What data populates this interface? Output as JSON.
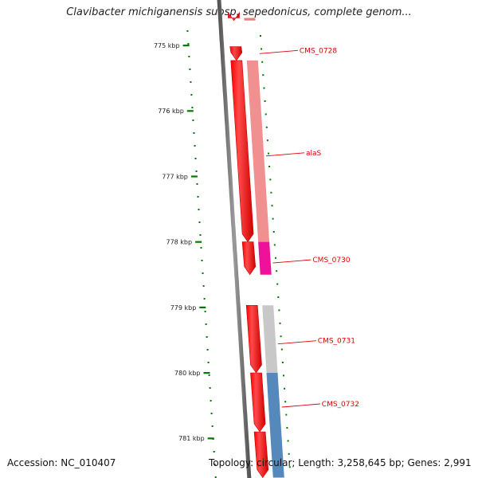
{
  "title": "Clavibacter michiganensis subsp. sepedonicus, complete genom...",
  "footer": {
    "accession": "Accession: NC_010407",
    "stats": "Topology: circular; Length: 3,258,645 bp; Genes: 2,991"
  },
  "ruler": [
    {
      "label": "775 kbp",
      "kbp": 775
    },
    {
      "label": "776 kbp",
      "kbp": 776
    },
    {
      "label": "777 kbp",
      "kbp": 777
    },
    {
      "label": "778 kbp",
      "kbp": 778
    },
    {
      "label": "779 kbp",
      "kbp": 779
    },
    {
      "label": "780 kbp",
      "kbp": 780
    },
    {
      "label": "781 kbp",
      "kbp": 781
    }
  ],
  "genes": [
    {
      "label": "",
      "start_kbp": 774.58,
      "end_kbp": 774.62,
      "strand": "-",
      "cds_color": "#e88080"
    },
    {
      "label": "CMS_0728",
      "start_kbp": 775.02,
      "end_kbp": 775.23,
      "strand": "-",
      "cds_color": ""
    },
    {
      "label": "alaS",
      "start_kbp": 775.23,
      "end_kbp": 778.0,
      "strand": "-",
      "cds_color": "#f09090"
    },
    {
      "label": "CMS_0730",
      "start_kbp": 778.0,
      "end_kbp": 778.5,
      "strand": "-",
      "cds_color": "#ee1199"
    },
    {
      "label": "CMS_0731",
      "start_kbp": 778.97,
      "end_kbp": 780.0,
      "strand": "-",
      "cds_color": "#c8c8c8"
    },
    {
      "label": "CMS_0732",
      "start_kbp": 780.0,
      "end_kbp": 780.9,
      "strand": "-",
      "cds_color": "#5588bb"
    },
    {
      "label": "",
      "start_kbp": 780.9,
      "end_kbp": 781.6,
      "strand": "-",
      "cds_color": "#5588bb"
    }
  ],
  "colors": {
    "gene": "#ff0000",
    "backbone": "#777777",
    "gc_dots": "#007a00",
    "label": "#e00000"
  }
}
